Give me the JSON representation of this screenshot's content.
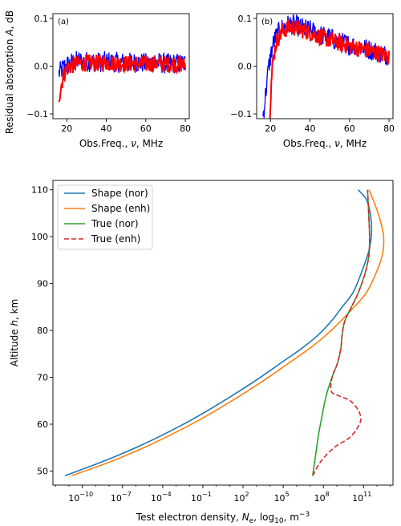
{
  "chart_data": [
    {
      "type": "line",
      "panel_label": "(a)",
      "ylabel": "Residual absorption A, dB",
      "xlabel": "Obs.Freq., ν, MHz",
      "xlim": [
        13,
        82
      ],
      "ylim": [
        -0.11,
        0.11
      ],
      "xticks": [
        20,
        40,
        60,
        80
      ],
      "yticks": [
        -0.1,
        0.0,
        0.1
      ],
      "xtick_labels": [
        "20",
        "40",
        "60",
        "80"
      ],
      "ytick_labels": [
        "−0.1",
        "0.0",
        "0.1"
      ],
      "series": [
        {
          "color": "#0000ff",
          "x": [
            16,
            17,
            18,
            19,
            20,
            22,
            24,
            26,
            28,
            30,
            35,
            40,
            45,
            50,
            55,
            60,
            65,
            70,
            75,
            80
          ],
          "y": [
            -0.015,
            -0.01,
            -0.005,
            0.0,
            0.002,
            0.005,
            0.01,
            0.012,
            0.01,
            0.01,
            0.008,
            0.01,
            0.008,
            0.007,
            0.008,
            0.006,
            0.008,
            0.005,
            0.006,
            0.005
          ]
        },
        {
          "color": "#ff0000",
          "x": [
            16,
            17,
            18,
            19,
            20,
            22,
            24,
            26,
            28,
            30,
            35,
            40,
            45,
            50,
            55,
            60,
            65,
            70,
            75,
            80
          ],
          "y": [
            -0.065,
            -0.045,
            -0.025,
            -0.012,
            -0.005,
            0.0,
            0.004,
            0.006,
            0.006,
            0.007,
            0.006,
            0.008,
            0.006,
            0.005,
            0.006,
            0.004,
            0.006,
            0.004,
            0.004,
            0.003
          ]
        }
      ]
    },
    {
      "type": "line",
      "panel_label": "(b)",
      "xlabel": "Obs.Freq., ν, MHz",
      "xlim": [
        13,
        82
      ],
      "ylim": [
        -0.11,
        0.11
      ],
      "xticks": [
        20,
        40,
        60,
        80
      ],
      "yticks": [
        -0.1,
        0.0,
        0.1
      ],
      "xtick_labels": [
        "20",
        "40",
        "60",
        "80"
      ],
      "ytick_labels": [
        "−0.1",
        "0.0",
        "0.1"
      ],
      "series": [
        {
          "color": "#0000ff",
          "x": [
            16,
            17,
            18,
            19,
            20,
            21,
            22,
            24,
            26,
            28,
            30,
            33,
            36,
            40,
            45,
            50,
            55,
            60,
            65,
            70,
            75,
            80
          ],
          "y": [
            -0.11,
            -0.08,
            -0.04,
            -0.005,
            0.02,
            0.04,
            0.055,
            0.07,
            0.08,
            0.085,
            0.088,
            0.085,
            0.08,
            0.075,
            0.065,
            0.06,
            0.05,
            0.045,
            0.04,
            0.035,
            0.028,
            0.022
          ]
        },
        {
          "color": "#ff0000",
          "x": [
            19.5,
            20,
            20.5,
            21,
            22,
            23,
            24,
            26,
            28,
            30,
            33,
            36,
            40,
            45,
            50,
            55,
            60,
            65,
            70,
            75,
            80
          ],
          "y": [
            -0.11,
            -0.07,
            -0.03,
            0.0,
            0.03,
            0.05,
            0.06,
            0.072,
            0.078,
            0.082,
            0.08,
            0.076,
            0.07,
            0.062,
            0.055,
            0.048,
            0.042,
            0.037,
            0.032,
            0.026,
            0.02
          ]
        }
      ]
    },
    {
      "type": "line",
      "xlabel": "Test electron density, N_e, log10, m^-3",
      "ylabel": "Altitude h, km",
      "x_scale": "log",
      "xlim_log10": [
        -12.2,
        13.2
      ],
      "ylim": [
        47,
        112
      ],
      "xticks_log10": [
        -10,
        -7,
        -4,
        -1,
        2,
        5,
        8,
        11
      ],
      "xtick_bases": [
        "10",
        "10",
        "10",
        "10",
        "10",
        "10",
        "10",
        "10"
      ],
      "xtick_exps": [
        "−10",
        "−7",
        "−4",
        "−1",
        "2",
        "5",
        "8",
        "11"
      ],
      "yticks": [
        50,
        60,
        70,
        80,
        90,
        100,
        110
      ],
      "ytick_labels": [
        "50",
        "60",
        "70",
        "80",
        "90",
        "100",
        "110"
      ],
      "legend_position": "top-left",
      "series": [
        {
          "name": "Shape (nor)",
          "color": "#1f77b4",
          "style": "solid",
          "log10_x": [
            -11.3,
            -8.5,
            -6.0,
            -3.8,
            -1.8,
            0.0,
            1.7,
            3.3,
            4.8,
            6.3,
            7.6,
            8.6,
            9.4,
            10.2,
            10.8,
            11.4,
            11.6,
            11.5,
            11.2,
            10.6
          ],
          "y": [
            49,
            52,
            55,
            58,
            61,
            64,
            67,
            70,
            73,
            76,
            79,
            82,
            85,
            88,
            92,
            97,
            101,
            105,
            108,
            110
          ]
        },
        {
          "name": "Shape (enh)",
          "color": "#ff7f0e",
          "style": "solid",
          "log10_x": [
            -10.8,
            -7.9,
            -5.4,
            -3.2,
            -1.2,
            0.6,
            2.3,
            3.9,
            5.4,
            6.9,
            8.2,
            9.3,
            10.3,
            11.2,
            11.9,
            12.4,
            12.5,
            12.2,
            11.7,
            11.4
          ],
          "y": [
            49,
            52,
            55,
            58,
            61,
            64,
            67,
            70,
            73,
            76,
            79,
            82,
            85,
            88,
            92,
            96,
            100,
            104,
            108,
            110
          ]
        },
        {
          "name": "True (nor)",
          "color": "#2ca02c",
          "style": "solid",
          "log10_x": [
            7.2,
            7.35,
            7.5,
            7.65,
            7.85,
            8.05,
            8.3,
            8.65,
            9.05,
            9.3,
            9.4,
            9.6,
            10.1,
            10.6,
            11.1,
            11.4,
            11.45,
            11.4,
            11.3
          ],
          "y": [
            49,
            52,
            55,
            58,
            61,
            64,
            67,
            70,
            73,
            76,
            79,
            82,
            85,
            88,
            92,
            96,
            100,
            104,
            110
          ]
        },
        {
          "name": "True (enh)",
          "color": "#d62728",
          "style": "dashed",
          "log10_x": [
            7.2,
            7.8,
            8.8,
            9.9,
            10.5,
            10.8,
            10.6,
            10.0,
            9.2,
            8.6,
            8.65,
            9.05,
            9.3,
            9.4,
            9.6,
            10.1,
            10.6,
            11.1,
            11.4,
            11.45,
            11.4,
            11.3
          ],
          "y": [
            49,
            52,
            55,
            57,
            59,
            61,
            63,
            65,
            66,
            67,
            70,
            73,
            76,
            79,
            82,
            85,
            88,
            92,
            96,
            100,
            104,
            110
          ]
        }
      ]
    }
  ]
}
